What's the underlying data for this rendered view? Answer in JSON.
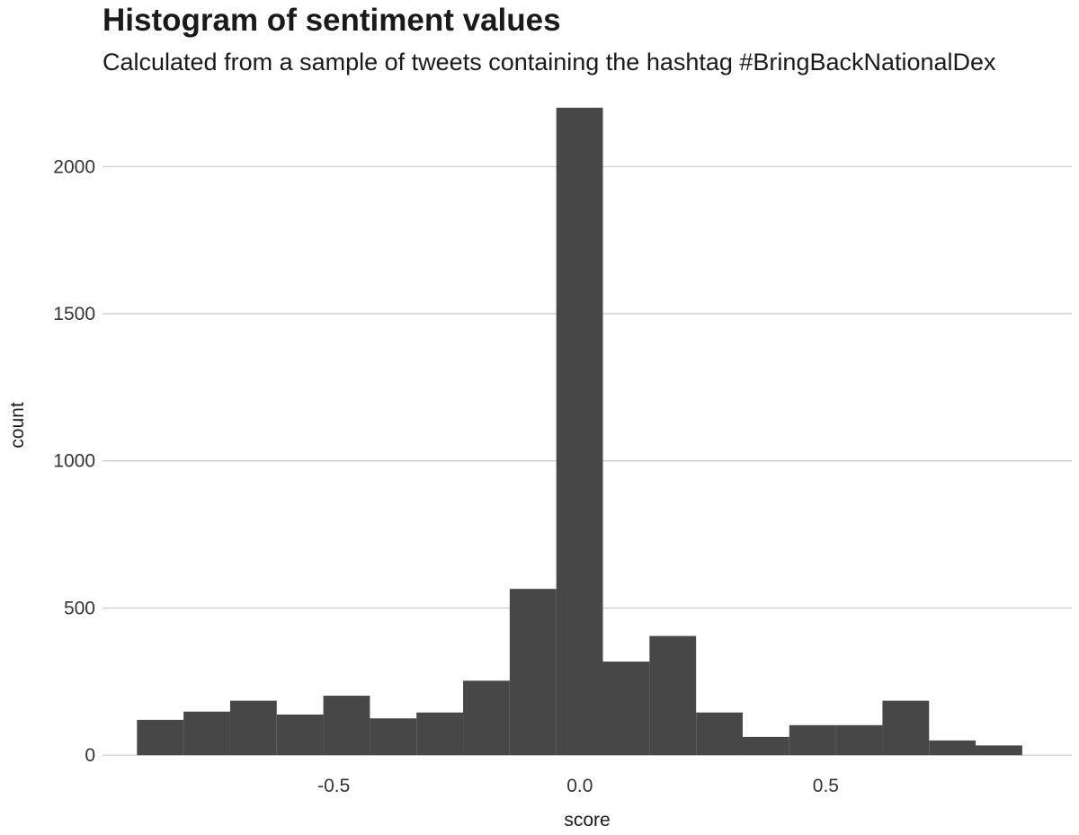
{
  "chart_data": {
    "type": "bar",
    "title": "Histogram of sentiment values",
    "subtitle": "Calculated from a sample of tweets containing the hashtag #BringBackNationalDex",
    "xlabel": "score",
    "ylabel": "count",
    "bin_width": 0.0947,
    "x_start": -0.9,
    "values": [
      120,
      148,
      185,
      138,
      202,
      125,
      145,
      253,
      565,
      2200,
      318,
      405,
      145,
      62,
      102,
      102,
      185,
      50,
      33
    ],
    "xlim": [
      -0.97,
      1.0
    ],
    "ylim": [
      -30,
      2230
    ],
    "x_ticks": [
      -0.5,
      0.0,
      0.5
    ],
    "x_tick_labels": [
      "-0.5",
      "0.0",
      "0.5"
    ],
    "y_ticks": [
      0,
      500,
      1000,
      1500,
      2000
    ],
    "y_tick_labels": [
      "0",
      "500",
      "1000",
      "1500",
      "2000"
    ],
    "grid": "horizontal",
    "bar_color": "#474747",
    "grid_color": "#c8c8c8"
  }
}
